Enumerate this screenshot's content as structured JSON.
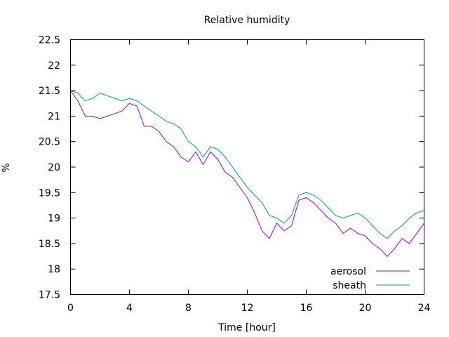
{
  "chart_data": {
    "type": "line",
    "title": "Relative humidity",
    "xlabel": "Time [hour]",
    "ylabel": "%",
    "xlim": [
      0,
      24
    ],
    "ylim": [
      17.5,
      22.5
    ],
    "xticks": [
      0,
      4,
      8,
      12,
      16,
      20,
      24
    ],
    "xtick_labels": [
      "0",
      "4",
      "8",
      "12",
      "16",
      "20",
      "24"
    ],
    "yticks": [
      17.5,
      18,
      18.5,
      19,
      19.5,
      20,
      20.5,
      21,
      21.5,
      22,
      22.5
    ],
    "ytick_labels": [
      "17.5",
      "18",
      "18.5",
      "19",
      "19.5",
      "20",
      "20.5",
      "21",
      "21.5",
      "22",
      "22.5"
    ],
    "grid": false,
    "legend_position": "bottom-right",
    "series": [
      {
        "name": "aerosol",
        "color": "#9400d3",
        "x": [
          0,
          0.5,
          1,
          1.5,
          2,
          2.5,
          3,
          3.5,
          4,
          4.5,
          5,
          5.5,
          6,
          6.5,
          7,
          7.5,
          8,
          8.5,
          9,
          9.5,
          10,
          10.5,
          11,
          11.5,
          12,
          12.5,
          13,
          13.5,
          14,
          14.5,
          15,
          15.5,
          16,
          16.5,
          17,
          17.5,
          18,
          18.5,
          19,
          19.5,
          20,
          20.5,
          21,
          21.5,
          22,
          22.5,
          23,
          23.5,
          24
        ],
        "y": [
          21.5,
          21.3,
          21.0,
          21.0,
          20.95,
          21.0,
          21.05,
          21.1,
          21.25,
          21.2,
          20.8,
          20.8,
          20.7,
          20.5,
          20.4,
          20.2,
          20.1,
          20.3,
          20.05,
          20.3,
          20.15,
          19.9,
          19.8,
          19.6,
          19.4,
          19.1,
          18.75,
          18.6,
          18.9,
          18.75,
          18.85,
          19.35,
          19.4,
          19.3,
          19.15,
          19.0,
          18.9,
          18.7,
          18.8,
          18.7,
          18.65,
          18.5,
          18.4,
          18.25,
          18.4,
          18.6,
          18.5,
          18.7,
          18.9
        ]
      },
      {
        "name": "sheath",
        "color": "#009e73",
        "x": [
          0,
          0.5,
          1,
          1.5,
          2,
          2.5,
          3,
          3.5,
          4,
          4.5,
          5,
          5.5,
          6,
          6.5,
          7,
          7.5,
          8,
          8.5,
          9,
          9.5,
          10,
          10.5,
          11,
          11.5,
          12,
          12.5,
          13,
          13.5,
          14,
          14.5,
          15,
          15.5,
          16,
          16.5,
          17,
          17.5,
          18,
          18.5,
          19,
          19.5,
          20,
          20.5,
          21,
          21.5,
          22,
          22.5,
          23,
          23.5,
          24
        ],
        "y": [
          21.5,
          21.45,
          21.3,
          21.35,
          21.45,
          21.4,
          21.35,
          21.3,
          21.35,
          21.3,
          21.2,
          21.1,
          21.0,
          20.9,
          20.85,
          20.75,
          20.5,
          20.4,
          20.2,
          20.4,
          20.35,
          20.2,
          20.0,
          19.8,
          19.6,
          19.45,
          19.3,
          19.05,
          19.0,
          18.9,
          19.05,
          19.45,
          19.5,
          19.45,
          19.35,
          19.2,
          19.05,
          19.0,
          19.05,
          19.1,
          19.0,
          18.85,
          18.7,
          18.6,
          18.75,
          18.85,
          19.0,
          19.1,
          19.15
        ]
      }
    ]
  }
}
